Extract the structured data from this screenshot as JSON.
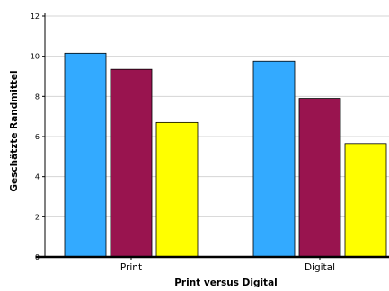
{
  "chart_data": {
    "type": "bar",
    "title": "",
    "xlabel": "Print versus Digital",
    "ylabel": "Geschätzte Randmittel",
    "categories": [
      "Print",
      "Digital"
    ],
    "ylim": [
      0,
      12
    ],
    "yticks": [
      0,
      2,
      4,
      6,
      8,
      10,
      12
    ],
    "grid": true,
    "legend": "none",
    "series": [
      {
        "color": "#33aaff",
        "values": [
          10.15,
          9.75
        ]
      },
      {
        "color": "#99144f",
        "values": [
          9.35,
          7.9
        ]
      },
      {
        "color": "#ffff00",
        "values": [
          6.7,
          5.65
        ]
      }
    ]
  }
}
